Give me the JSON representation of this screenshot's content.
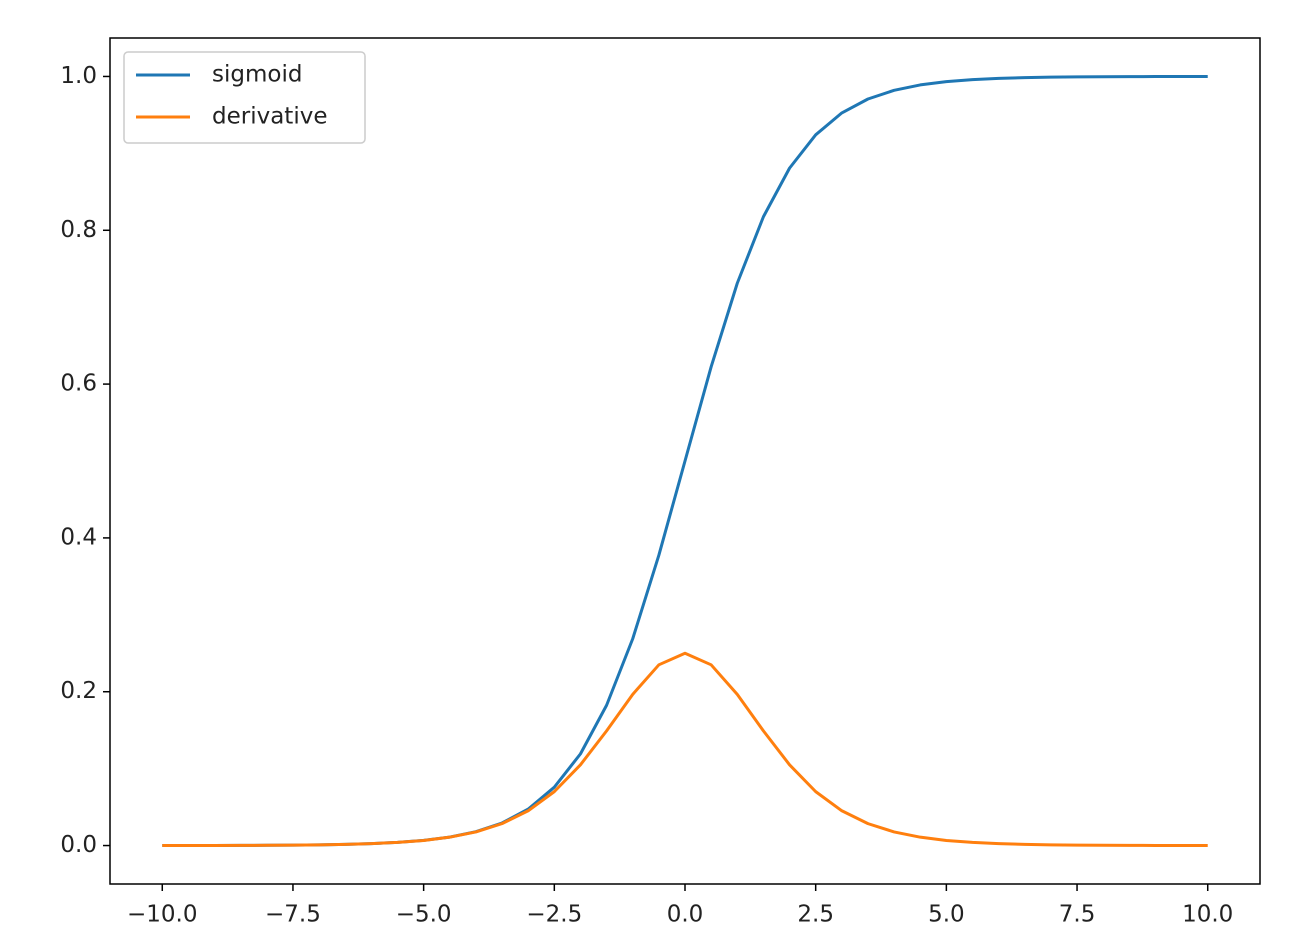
{
  "chart_data": {
    "type": "line",
    "x": [
      -10,
      -9.5,
      -9,
      -8.5,
      -8,
      -7.5,
      -7,
      -6.5,
      -6,
      -5.5,
      -5,
      -4.5,
      -4,
      -3.5,
      -3,
      -2.5,
      -2,
      -1.5,
      -1,
      -0.5,
      0,
      0.5,
      1,
      1.5,
      2,
      2.5,
      3,
      3.5,
      4,
      4.5,
      5,
      5.5,
      6,
      6.5,
      7,
      7.5,
      8,
      8.5,
      9,
      9.5,
      10
    ],
    "series": [
      {
        "name": "sigmoid",
        "color": "#1f77b4",
        "values": [
          0.0,
          0.0001,
          0.0001,
          0.0002,
          0.0003,
          0.0006,
          0.0009,
          0.0015,
          0.0025,
          0.0041,
          0.0067,
          0.011,
          0.018,
          0.0293,
          0.0474,
          0.0759,
          0.1192,
          0.1824,
          0.2689,
          0.3775,
          0.5,
          0.6225,
          0.7311,
          0.8176,
          0.8808,
          0.9241,
          0.9526,
          0.9707,
          0.982,
          0.989,
          0.9933,
          0.9959,
          0.9975,
          0.9985,
          0.9991,
          0.9994,
          0.9997,
          0.9998,
          0.9999,
          0.9999,
          1.0
        ]
      },
      {
        "name": "derivative",
        "color": "#ff7f0e",
        "values": [
          0.0,
          0.0001,
          0.0001,
          0.0002,
          0.0003,
          0.0006,
          0.0009,
          0.0015,
          0.0025,
          0.0041,
          0.0066,
          0.0109,
          0.0177,
          0.0285,
          0.0452,
          0.0701,
          0.105,
          0.1491,
          0.1966,
          0.235,
          0.25,
          0.235,
          0.1966,
          0.1491,
          0.105,
          0.0701,
          0.0452,
          0.0285,
          0.0177,
          0.0109,
          0.0066,
          0.0041,
          0.0025,
          0.0015,
          0.0009,
          0.0006,
          0.0003,
          0.0002,
          0.0001,
          0.0001,
          0.0
        ]
      }
    ],
    "xlim": [
      -11,
      11
    ],
    "ylim": [
      -0.05,
      1.05
    ],
    "xticks": [
      {
        "value": -10,
        "label": "−10.0"
      },
      {
        "value": -7.5,
        "label": "−7.5"
      },
      {
        "value": -5,
        "label": "−5.0"
      },
      {
        "value": -2.5,
        "label": "−2.5"
      },
      {
        "value": 0,
        "label": "0.0"
      },
      {
        "value": 2.5,
        "label": "2.5"
      },
      {
        "value": 5,
        "label": "5.0"
      },
      {
        "value": 7.5,
        "label": "7.5"
      },
      {
        "value": 10,
        "label": "10.0"
      }
    ],
    "yticks": [
      {
        "value": 0,
        "label": "0.0"
      },
      0.2,
      0.4,
      0.6,
      0.8,
      {
        "value": 1,
        "label": "1.0"
      }
    ],
    "legend": "upper left"
  }
}
